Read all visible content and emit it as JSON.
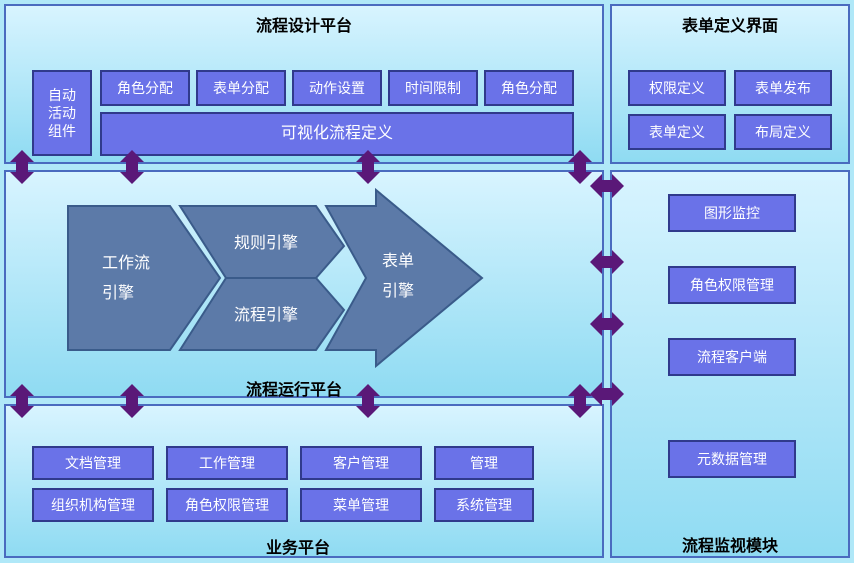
{
  "style": {
    "panel_bg_top": "#d8f4ff",
    "panel_bg_bottom": "#8fdbf2",
    "panel_border": "#4a6bbf",
    "box_bg": "#6a72e8",
    "box_border": "#303a8c",
    "box_text": "#ffffff",
    "engine_fill": "#5c7aa8",
    "engine_stroke": "#3a5b8a",
    "arrow_fill": "#5a1878",
    "title_color": "#000000",
    "title_fontsize": 16,
    "box_fontsize": 14,
    "engine_fontsize": 16
  },
  "panels": {
    "design": {
      "title": "流程设计平台"
    },
    "form": {
      "title": "表单定义界面"
    },
    "runtime": {
      "title": "流程运行平台"
    },
    "business": {
      "title": "业务平台"
    },
    "monitor": {
      "title": "流程监视模块"
    }
  },
  "design_blocks": {
    "auto": "自动\n活动\n组件",
    "row1": [
      "角色分配",
      "表单分配",
      "动作设置",
      "时间限制",
      "角色分配"
    ],
    "visual": "可视化流程定义"
  },
  "form_blocks": {
    "perm": "权限定义",
    "publish": "表单发布",
    "define": "表单定义",
    "layout": "布局定义"
  },
  "engines": {
    "workflow": "工作流\n引擎",
    "rule": "规则引擎",
    "process": "流程引擎",
    "form": "表单\n引擎"
  },
  "business_blocks": {
    "doc": "文档管理",
    "work": "工作管理",
    "customer": "客户管理",
    "mgmt": "管理",
    "org": "组织机构管理",
    "role": "角色权限管理",
    "menu": "菜单管理",
    "sys": "系统管理"
  },
  "monitor_blocks": {
    "graph": "图形监控",
    "role": "角色权限管理",
    "client": "流程客户端",
    "meta": "元数据管理"
  }
}
